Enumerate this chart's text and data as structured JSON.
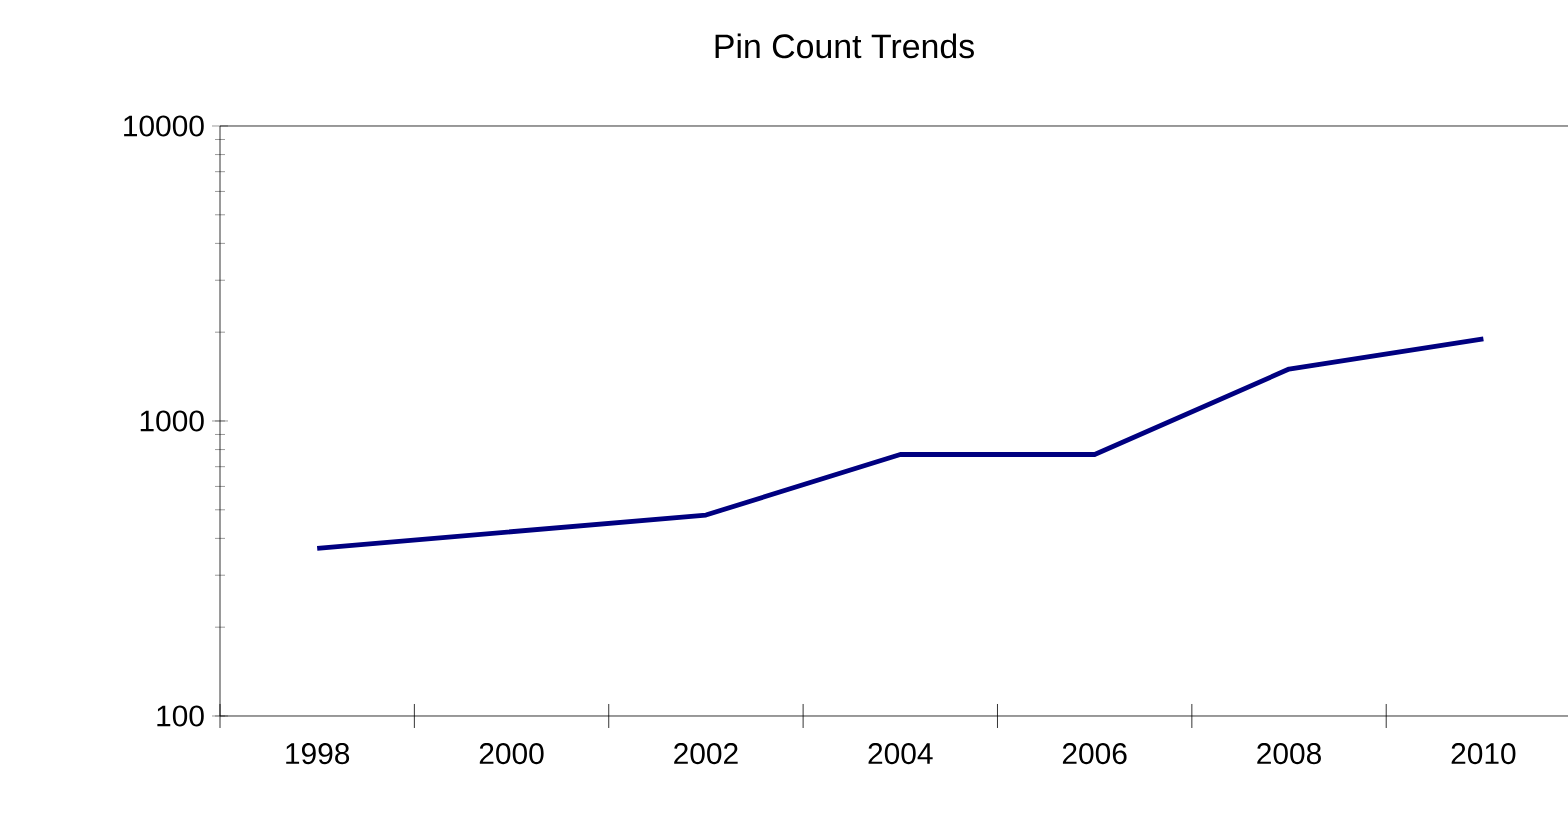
{
  "chart_data": {
    "type": "line",
    "title": "Pin Count Trends",
    "x": [
      1998,
      2002,
      2004,
      2006,
      2008,
      2010
    ],
    "series": [
      {
        "color": "#000080",
        "values": [
          370,
          480,
          770,
          770,
          1500,
          1900
        ]
      }
    ],
    "xlim": [
      1997,
      2011.2
    ],
    "xticks": [
      {
        "value": 1997,
        "label": null
      },
      1998,
      {
        "value": 1999,
        "label": null
      },
      2000,
      {
        "value": 2001,
        "label": null
      },
      2002,
      {
        "value": 2003,
        "label": null
      },
      2004,
      {
        "value": 2005,
        "label": null
      },
      2006,
      {
        "value": 2007,
        "label": null
      },
      2008,
      {
        "value": 2009,
        "label": null
      },
      2010
    ],
    "ylim": [
      100,
      10000
    ],
    "yticks": [
      100,
      1000,
      10000
    ],
    "log": "y",
    "marker": "none",
    "line_style": "solid"
  }
}
